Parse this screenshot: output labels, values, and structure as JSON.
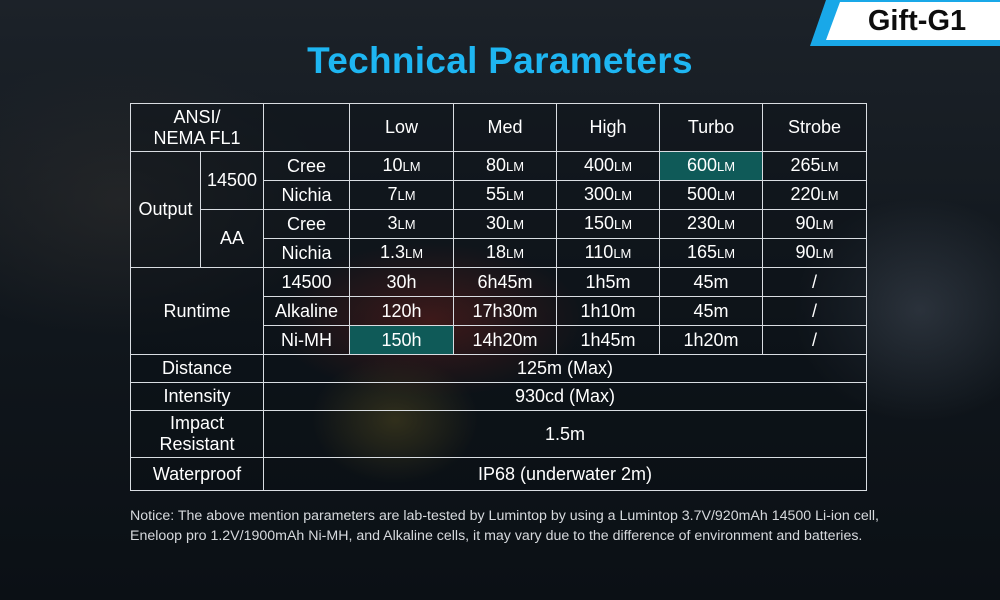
{
  "badge": "Gift-G1",
  "title": "Technical Parameters",
  "table": {
    "corner": [
      "ANSI/",
      "NEMA FL1"
    ],
    "modes": [
      "Low",
      "Med",
      "High",
      "Turbo",
      "Strobe"
    ],
    "output": {
      "label": "Output",
      "unit": "LM",
      "groups": [
        {
          "battery": "14500",
          "rows": [
            {
              "led": "Cree",
              "values": [
                "10",
                "80",
                "400",
                "600",
                "265"
              ]
            },
            {
              "led": "Nichia",
              "values": [
                "7",
                "55",
                "300",
                "500",
                "220"
              ]
            }
          ]
        },
        {
          "battery": "AA",
          "rows": [
            {
              "led": "Cree",
              "values": [
                "3",
                "30",
                "150",
                "230",
                "90"
              ]
            },
            {
              "led": "Nichia",
              "values": [
                "1.3",
                "18",
                "110",
                "165",
                "90"
              ]
            }
          ]
        }
      ]
    },
    "runtime": {
      "label": "Runtime",
      "rows": [
        {
          "battery": "14500",
          "values": [
            "30h",
            "6h45m",
            "1h5m",
            "45m",
            "/"
          ]
        },
        {
          "battery": "Alkaline",
          "values": [
            "120h",
            "17h30m",
            "1h10m",
            "45m",
            "/"
          ]
        },
        {
          "battery": "Ni-MH",
          "values": [
            "150h",
            "14h20m",
            "1h45m",
            "1h20m",
            "/"
          ]
        }
      ]
    },
    "distance": {
      "label": "Distance",
      "value": "125m (Max)"
    },
    "intensity": {
      "label": "Intensity",
      "value": "930cd (Max)"
    },
    "impact": {
      "label": [
        "Impact",
        "Resistant"
      ],
      "value": "1.5m"
    },
    "waterproof": {
      "label": "Waterproof",
      "value": "IP68 (underwater 2m)"
    }
  },
  "notice": "Notice: The above mention parameters are lab-tested by Lumintop by using a Lumintop 3.7V/920mAh 14500 Li-ion cell, Eneloop pro 1.2V/1900mAh Ni-MH, and Alkaline cells, it may vary due to the difference of environment and batteries.",
  "colors": {
    "title": "#1eb6f2",
    "badge_border": "#19a8e8",
    "highlight": "#0f5a58",
    "grid": "#d9dde2"
  }
}
